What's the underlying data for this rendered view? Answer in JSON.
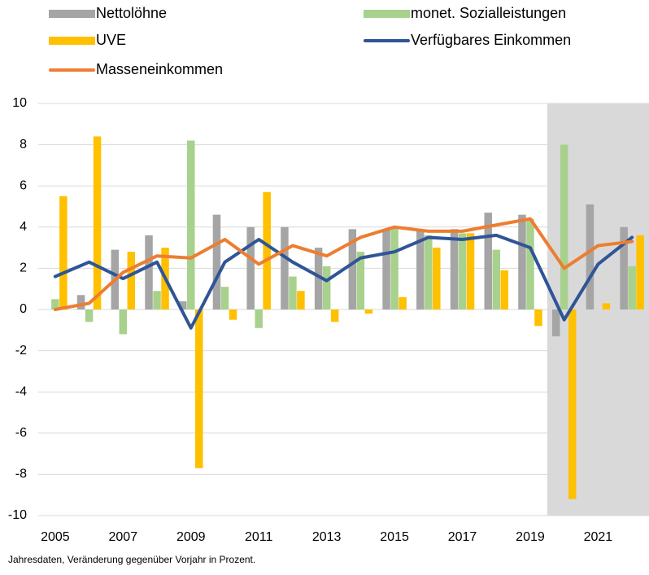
{
  "chart_data": {
    "type": "combo",
    "note": "Jahresdaten, Veränderung gegenüber Vorjahr in Prozent.",
    "categories": [
      "2005",
      null,
      "2007",
      null,
      "2009",
      null,
      "2011",
      null,
      "2013",
      null,
      "2015",
      null,
      "2017",
      null,
      "2019",
      null,
      "2021",
      null
    ],
    "series": [
      {
        "name": "Nettolöhne",
        "type": "bar",
        "color": "#a5a5a5",
        "values": [
          0.0,
          0.7,
          2.9,
          3.6,
          0.4,
          4.6,
          4.0,
          4.0,
          3.0,
          3.9,
          3.9,
          3.9,
          3.9,
          4.7,
          4.6,
          -1.3,
          5.1,
          4.0
        ]
      },
      {
        "name": "monet. Sozialleistungen",
        "type": "bar",
        "color": "#a9d18e",
        "values": [
          0.5,
          -0.6,
          -1.2,
          0.9,
          8.2,
          1.1,
          -0.9,
          1.6,
          2.1,
          2.8,
          4.0,
          3.6,
          3.7,
          2.9,
          4.4,
          8.0,
          0.0,
          2.1
        ]
      },
      {
        "name": "UVE",
        "type": "bar",
        "color": "#ffc000",
        "values": [
          5.5,
          8.4,
          2.8,
          3.0,
          -7.7,
          -0.5,
          5.7,
          0.9,
          -0.6,
          -0.2,
          0.6,
          3.0,
          3.7,
          1.9,
          -0.8,
          -9.2,
          0.3,
          3.6
        ]
      },
      {
        "name": "Verfügbares Einkommen",
        "type": "line",
        "color": "#2f5597",
        "values": [
          1.6,
          2.3,
          1.5,
          2.3,
          -0.9,
          2.3,
          3.4,
          2.3,
          1.4,
          2.5,
          2.8,
          3.5,
          3.4,
          3.6,
          3.0,
          -0.5,
          2.2,
          3.5
        ]
      },
      {
        "name": "Masseneinkommen",
        "type": "line",
        "color": "#ed7d31",
        "values": [
          0.0,
          0.3,
          1.8,
          2.6,
          2.5,
          3.4,
          2.2,
          3.1,
          2.6,
          3.5,
          4.0,
          3.8,
          3.8,
          4.1,
          4.4,
          2.0,
          3.1,
          3.3
        ]
      }
    ],
    "ylim": [
      -10,
      10
    ],
    "yticks": [
      -10,
      -8,
      -6,
      -4,
      -2,
      0,
      2,
      4,
      6,
      8,
      10
    ],
    "grid": true
  }
}
